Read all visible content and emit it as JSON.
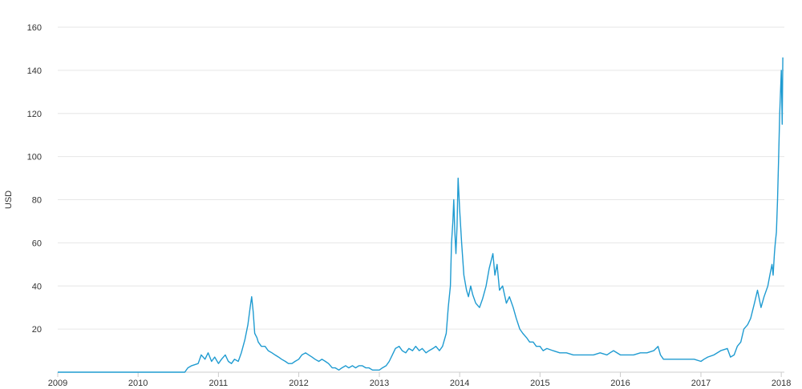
{
  "chart_data": {
    "type": "line",
    "title": "",
    "xlabel": "",
    "ylabel": "USD",
    "ylim": [
      0,
      160
    ],
    "xlim": [
      "2009-01-01",
      "2018-01-15"
    ],
    "y_ticks": [
      20,
      40,
      60,
      80,
      100,
      120,
      140,
      160
    ],
    "x_ticks": [
      "2009",
      "2010",
      "2011",
      "2012",
      "2013",
      "2014",
      "2015",
      "2016",
      "2017",
      "2018"
    ],
    "grid": true,
    "legend": "none",
    "colors": {
      "line": "#1f9bd1",
      "grid": "#e6e6e6",
      "axis": "#cccccc"
    },
    "series": [
      {
        "x": [
          "2009-01-01",
          "2010-08-01",
          "2010-08-15",
          "2010-09-01",
          "2010-10-01",
          "2010-10-15",
          "2010-11-01",
          "2010-11-15",
          "2010-12-01",
          "2010-12-15",
          "2011-01-01",
          "2011-01-15",
          "2011-02-01",
          "2011-02-15",
          "2011-03-01",
          "2011-03-15",
          "2011-04-01",
          "2011-04-15",
          "2011-05-01",
          "2011-05-15",
          "2011-05-25",
          "2011-06-01",
          "2011-06-08",
          "2011-06-15",
          "2011-06-25",
          "2011-07-01",
          "2011-07-15",
          "2011-08-01",
          "2011-08-15",
          "2011-09-01",
          "2011-09-15",
          "2011-10-01",
          "2011-10-15",
          "2011-11-01",
          "2011-11-15",
          "2011-12-01",
          "2011-12-15",
          "2012-01-01",
          "2012-01-15",
          "2012-02-01",
          "2012-02-15",
          "2012-03-01",
          "2012-03-15",
          "2012-04-01",
          "2012-04-15",
          "2012-05-01",
          "2012-05-15",
          "2012-06-01",
          "2012-06-15",
          "2012-07-01",
          "2012-07-15",
          "2012-08-01",
          "2012-08-15",
          "2012-09-01",
          "2012-09-15",
          "2012-10-01",
          "2012-10-15",
          "2012-11-01",
          "2012-11-15",
          "2012-12-01",
          "2012-12-15",
          "2013-01-01",
          "2013-01-15",
          "2013-02-01",
          "2013-02-15",
          "2013-03-01",
          "2013-03-15",
          "2013-04-01",
          "2013-04-15",
          "2013-05-01",
          "2013-05-15",
          "2013-06-01",
          "2013-06-15",
          "2013-07-01",
          "2013-07-15",
          "2013-08-01",
          "2013-08-15",
          "2013-09-01",
          "2013-09-15",
          "2013-10-01",
          "2013-10-15",
          "2013-11-01",
          "2013-11-10",
          "2013-11-20",
          "2013-11-25",
          "2013-12-01",
          "2013-12-05",
          "2013-12-10",
          "2013-12-15",
          "2013-12-20",
          "2013-12-25",
          "2014-01-01",
          "2014-01-10",
          "2014-01-20",
          "2014-02-01",
          "2014-02-10",
          "2014-02-20",
          "2014-03-01",
          "2014-03-15",
          "2014-04-01",
          "2014-04-15",
          "2014-05-01",
          "2014-05-15",
          "2014-06-01",
          "2014-06-10",
          "2014-06-20",
          "2014-07-01",
          "2014-07-15",
          "2014-08-01",
          "2014-08-15",
          "2014-09-01",
          "2014-09-15",
          "2014-10-01",
          "2014-10-15",
          "2014-11-01",
          "2014-11-15",
          "2014-12-01",
          "2014-12-15",
          "2015-01-01",
          "2015-01-15",
          "2015-02-01",
          "2015-03-01",
          "2015-04-01",
          "2015-05-01",
          "2015-06-01",
          "2015-07-01",
          "2015-08-01",
          "2015-09-01",
          "2015-10-01",
          "2015-11-01",
          "2015-11-15",
          "2015-12-01",
          "2016-01-01",
          "2016-02-01",
          "2016-03-01",
          "2016-04-01",
          "2016-05-01",
          "2016-06-01",
          "2016-06-20",
          "2016-07-01",
          "2016-07-15",
          "2016-08-01",
          "2016-09-01",
          "2016-10-01",
          "2016-11-01",
          "2016-12-01",
          "2017-01-01",
          "2017-01-15",
          "2017-02-01",
          "2017-03-01",
          "2017-04-01",
          "2017-05-01",
          "2017-05-15",
          "2017-06-01",
          "2017-06-15",
          "2017-07-01",
          "2017-07-15",
          "2017-08-01",
          "2017-08-15",
          "2017-09-01",
          "2017-09-15",
          "2017-10-01",
          "2017-10-15",
          "2017-11-01",
          "2017-11-10",
          "2017-11-20",
          "2017-11-25",
          "2017-12-01",
          "2017-12-05",
          "2017-12-10",
          "2017-12-15",
          "2017-12-20",
          "2017-12-25",
          "2018-01-01",
          "2018-01-05",
          "2018-01-08"
        ],
        "values": [
          0,
          0,
          2,
          3,
          4,
          8,
          6,
          9,
          5,
          7,
          4,
          6,
          8,
          5,
          4,
          6,
          5,
          9,
          15,
          22,
          30,
          35,
          28,
          18,
          16,
          14,
          12,
          12,
          10,
          9,
          8,
          7,
          6,
          5,
          4,
          4,
          5,
          6,
          8,
          9,
          8,
          7,
          6,
          5,
          6,
          5,
          4,
          2,
          2,
          1,
          2,
          3,
          2,
          3,
          2,
          3,
          3,
          2,
          2,
          1,
          1,
          1,
          2,
          3,
          5,
          8,
          11,
          12,
          10,
          9,
          11,
          10,
          12,
          10,
          11,
          9,
          10,
          11,
          12,
          10,
          12,
          18,
          30,
          40,
          60,
          70,
          80,
          65,
          55,
          68,
          90,
          75,
          60,
          45,
          38,
          35,
          40,
          36,
          32,
          30,
          34,
          40,
          48,
          55,
          45,
          50,
          38,
          40,
          32,
          35,
          30,
          25,
          20,
          18,
          16,
          14,
          14,
          12,
          12,
          10,
          11,
          10,
          9,
          9,
          8,
          8,
          8,
          8,
          9,
          8,
          9,
          10,
          8,
          8,
          8,
          9,
          9,
          10,
          12,
          8,
          6,
          6,
          6,
          6,
          6,
          6,
          5,
          6,
          7,
          8,
          10,
          11,
          7,
          8,
          12,
          14,
          20,
          22,
          25,
          32,
          38,
          30,
          35,
          40,
          45,
          50,
          45,
          55,
          60,
          65,
          80,
          100,
          120,
          140,
          115,
          146
        ]
      }
    ]
  }
}
